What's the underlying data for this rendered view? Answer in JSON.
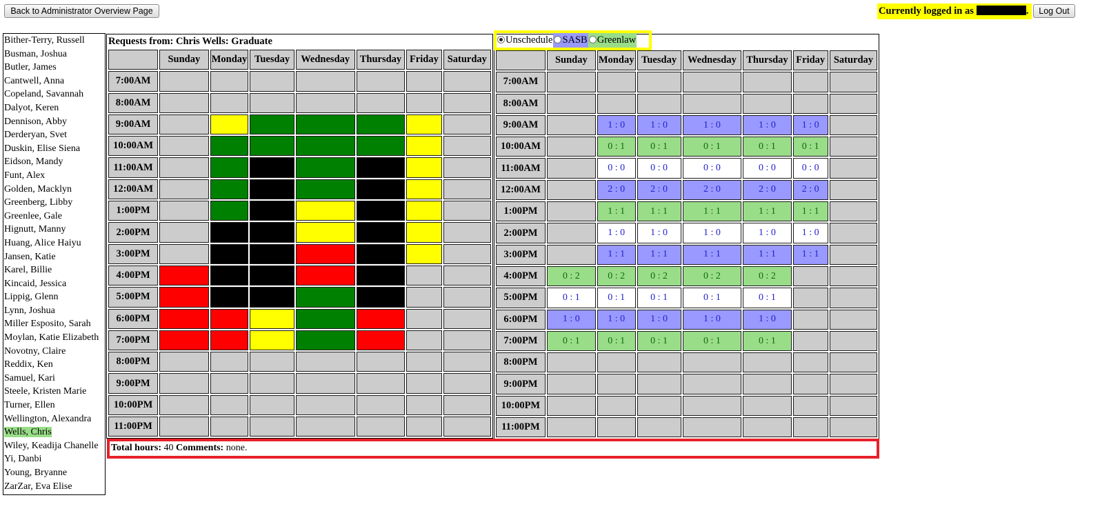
{
  "header": {
    "back_label": "Back to Administrator Overview Page",
    "logged_in_prefix": "Currently logged in as",
    "logout_label": "Log Out"
  },
  "employees": [
    "Bither-Terry, Russell",
    "Busman, Joshua",
    "Butler, James",
    "Cantwell, Anna",
    "Copeland, Savannah",
    "Dalyot, Keren",
    "Dennison, Abby",
    "Derderyan, Svet",
    "Duskin, Elise Siena",
    "Eidson, Mandy",
    "Funt, Alex",
    "Golden, Macklyn",
    "Greenberg, Libby",
    "Greenlee, Gale",
    "Hignutt, Manny",
    "Huang, Alice Haiyu",
    "Jansen, Katie",
    "Karel, Billie",
    "Kincaid, Jessica",
    "Lippig, Glenn",
    "Lynn, Joshua",
    "Miller Esposito, Sarah",
    "Moylan, Katie Elizabeth",
    "Novotny, Claire",
    "Reddix, Ken",
    "Samuel, Kari",
    "Steele, Kristen Marie",
    "Turner, Ellen",
    "Wellington, Alexandra",
    "Wells, Chris",
    "Wiley, Keadija Chanelle",
    "Yi, Danbi",
    "Young, Bryanne",
    "ZarZar, Eva Elise"
  ],
  "selected_employee": "Wells, Chris",
  "requests": {
    "title": "Requests from: Chris Wells: Graduate",
    "days": [
      "Sunday",
      "Monday",
      "Tuesday",
      "Wednesday",
      "Thursday",
      "Friday",
      "Saturday"
    ],
    "times": [
      "7:00AM",
      "8:00AM",
      "9:00AM",
      "10:00AM",
      "11:00AM",
      "12:00AM",
      "1:00PM",
      "2:00PM",
      "3:00PM",
      "4:00PM",
      "5:00PM",
      "6:00PM",
      "7:00PM",
      "8:00PM",
      "9:00PM",
      "10:00PM",
      "11:00PM"
    ],
    "legend_colors": {
      "g": "#008000",
      "y": "#ffff00",
      "k": "#000000",
      "r": "#ff0000",
      "-": "#cccccc"
    },
    "grid": [
      [
        "-",
        "-",
        "-",
        "-",
        "-",
        "-",
        "-"
      ],
      [
        "-",
        "-",
        "-",
        "-",
        "-",
        "-",
        "-"
      ],
      [
        "-",
        "y",
        "g",
        "g",
        "g",
        "y",
        "-"
      ],
      [
        "-",
        "g",
        "g",
        "g",
        "g",
        "y",
        "-"
      ],
      [
        "-",
        "g",
        "k",
        "g",
        "k",
        "y",
        "-"
      ],
      [
        "-",
        "g",
        "k",
        "g",
        "k",
        "y",
        "-"
      ],
      [
        "-",
        "g",
        "k",
        "y",
        "k",
        "y",
        "-"
      ],
      [
        "-",
        "k",
        "k",
        "y",
        "k",
        "y",
        "-"
      ],
      [
        "-",
        "k",
        "k",
        "r",
        "k",
        "y",
        "-"
      ],
      [
        "r",
        "k",
        "k",
        "r",
        "k",
        "-",
        "-"
      ],
      [
        "r",
        "k",
        "k",
        "g",
        "k",
        "-",
        "-"
      ],
      [
        "r",
        "r",
        "y",
        "g",
        "r",
        "-",
        "-"
      ],
      [
        "r",
        "r",
        "y",
        "g",
        "r",
        "-",
        "-"
      ],
      [
        "-",
        "-",
        "-",
        "-",
        "-",
        "-",
        "-"
      ],
      [
        "-",
        "-",
        "-",
        "-",
        "-",
        "-",
        "-"
      ],
      [
        "-",
        "-",
        "-",
        "-",
        "-",
        "-",
        "-"
      ],
      [
        "-",
        "-",
        "-",
        "-",
        "-",
        "-",
        "-"
      ]
    ]
  },
  "schedule": {
    "location_options": [
      "Unschedule",
      "SASB",
      "Greenlaw"
    ],
    "selected_location": "Unschedule",
    "option_colors": {
      "SASB": "#9999ff",
      "Greenlaw": "#99dd88"
    },
    "days": [
      "Sunday",
      "Monday",
      "Tuesday",
      "Wednesday",
      "Thursday",
      "Friday",
      "Saturday"
    ],
    "times": [
      "7:00AM",
      "8:00AM",
      "9:00AM",
      "10:00AM",
      "11:00AM",
      "12:00AM",
      "1:00PM",
      "2:00PM",
      "3:00PM",
      "4:00PM",
      "5:00PM",
      "6:00PM",
      "7:00PM",
      "8:00PM",
      "9:00PM",
      "10:00PM",
      "11:00PM"
    ],
    "cell_colors": {
      "b": "#9999ff",
      "g": "#99dd88",
      "w": "#ffffff",
      "-": "#cccccc"
    },
    "grid": [
      [
        [
          "-",
          ""
        ],
        [
          "-",
          ""
        ],
        [
          "-",
          ""
        ],
        [
          "-",
          ""
        ],
        [
          "-",
          ""
        ],
        [
          "-",
          ""
        ],
        [
          "-",
          ""
        ]
      ],
      [
        [
          "-",
          ""
        ],
        [
          "-",
          ""
        ],
        [
          "-",
          ""
        ],
        [
          "-",
          ""
        ],
        [
          "-",
          ""
        ],
        [
          "-",
          ""
        ],
        [
          "-",
          ""
        ]
      ],
      [
        [
          "-",
          ""
        ],
        [
          "b",
          "1 : 0"
        ],
        [
          "b",
          "1 : 0"
        ],
        [
          "b",
          "1 : 0"
        ],
        [
          "b",
          "1 : 0"
        ],
        [
          "b",
          "1 : 0"
        ],
        [
          "-",
          ""
        ]
      ],
      [
        [
          "-",
          ""
        ],
        [
          "g",
          "0 : 1"
        ],
        [
          "g",
          "0 : 1"
        ],
        [
          "g",
          "0 : 1"
        ],
        [
          "g",
          "0 : 1"
        ],
        [
          "g",
          "0 : 1"
        ],
        [
          "-",
          ""
        ]
      ],
      [
        [
          "-",
          ""
        ],
        [
          "w",
          "0 : 0"
        ],
        [
          "w",
          "0 : 0"
        ],
        [
          "w",
          "0 : 0"
        ],
        [
          "w",
          "0 : 0"
        ],
        [
          "w",
          "0 : 0"
        ],
        [
          "-",
          ""
        ]
      ],
      [
        [
          "-",
          ""
        ],
        [
          "b",
          "2 : 0"
        ],
        [
          "b",
          "2 : 0"
        ],
        [
          "b",
          "2 : 0"
        ],
        [
          "b",
          "2 : 0"
        ],
        [
          "b",
          "2 : 0"
        ],
        [
          "-",
          ""
        ]
      ],
      [
        [
          "-",
          ""
        ],
        [
          "g",
          "1 : 1"
        ],
        [
          "g",
          "1 : 1"
        ],
        [
          "g",
          "1 : 1"
        ],
        [
          "g",
          "1 : 1"
        ],
        [
          "g",
          "1 : 1"
        ],
        [
          "-",
          ""
        ]
      ],
      [
        [
          "-",
          ""
        ],
        [
          "w",
          "1 : 0"
        ],
        [
          "w",
          "1 : 0"
        ],
        [
          "w",
          "1 : 0"
        ],
        [
          "w",
          "1 : 0"
        ],
        [
          "w",
          "1 : 0"
        ],
        [
          "-",
          ""
        ]
      ],
      [
        [
          "-",
          ""
        ],
        [
          "b",
          "1 : 1"
        ],
        [
          "b",
          "1 : 1"
        ],
        [
          "b",
          "1 : 1"
        ],
        [
          "b",
          "1 : 1"
        ],
        [
          "b",
          "1 : 1"
        ],
        [
          "-",
          ""
        ]
      ],
      [
        [
          "g",
          "0 : 2"
        ],
        [
          "g",
          "0 : 2"
        ],
        [
          "g",
          "0 : 2"
        ],
        [
          "g",
          "0 : 2"
        ],
        [
          "g",
          "0 : 2"
        ],
        [
          "-",
          ""
        ],
        [
          "-",
          ""
        ]
      ],
      [
        [
          "w",
          "0 : 1"
        ],
        [
          "w",
          "0 : 1"
        ],
        [
          "w",
          "0 : 1"
        ],
        [
          "w",
          "0 : 1"
        ],
        [
          "w",
          "0 : 1"
        ],
        [
          "-",
          ""
        ],
        [
          "-",
          ""
        ]
      ],
      [
        [
          "b",
          "1 : 0"
        ],
        [
          "b",
          "1 : 0"
        ],
        [
          "b",
          "1 : 0"
        ],
        [
          "b",
          "1 : 0"
        ],
        [
          "b",
          "1 : 0"
        ],
        [
          "-",
          ""
        ],
        [
          "-",
          ""
        ]
      ],
      [
        [
          "g",
          "0 : 1"
        ],
        [
          "g",
          "0 : 1"
        ],
        [
          "g",
          "0 : 1"
        ],
        [
          "g",
          "0 : 1"
        ],
        [
          "g",
          "0 : 1"
        ],
        [
          "-",
          ""
        ],
        [
          "-",
          ""
        ]
      ],
      [
        [
          "-",
          ""
        ],
        [
          "-",
          ""
        ],
        [
          "-",
          ""
        ],
        [
          "-",
          ""
        ],
        [
          "-",
          ""
        ],
        [
          "-",
          ""
        ],
        [
          "-",
          ""
        ]
      ],
      [
        [
          "-",
          ""
        ],
        [
          "-",
          ""
        ],
        [
          "-",
          ""
        ],
        [
          "-",
          ""
        ],
        [
          "-",
          ""
        ],
        [
          "-",
          ""
        ],
        [
          "-",
          ""
        ]
      ],
      [
        [
          "-",
          ""
        ],
        [
          "-",
          ""
        ],
        [
          "-",
          ""
        ],
        [
          "-",
          ""
        ],
        [
          "-",
          ""
        ],
        [
          "-",
          ""
        ],
        [
          "-",
          ""
        ]
      ],
      [
        [
          "-",
          ""
        ],
        [
          "-",
          ""
        ],
        [
          "-",
          ""
        ],
        [
          "-",
          ""
        ],
        [
          "-",
          ""
        ],
        [
          "-",
          ""
        ],
        [
          "-",
          ""
        ]
      ]
    ]
  },
  "summary": {
    "total_hours_label": "Total hours:",
    "total_hours_value": "40",
    "comments_label": "Comments:",
    "comments_value": "none."
  }
}
